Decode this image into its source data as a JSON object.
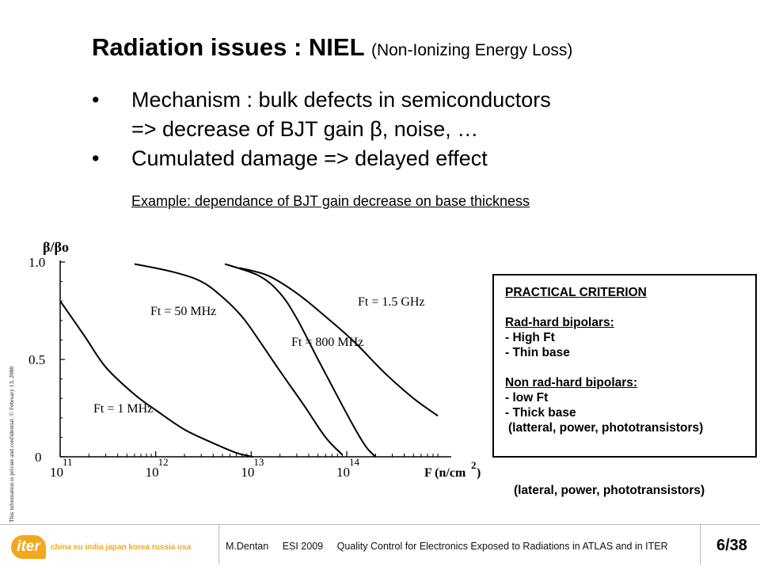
{
  "slide": {
    "title": "Radiation issues : NIEL",
    "title_sub": "(Non-Ionizing Energy Loss)",
    "bullets": [
      {
        "marker": "•",
        "line1": "Mechanism : bulk defects in semiconductors",
        "line2": "=> decrease of BJT gain β, noise, …"
      },
      {
        "marker": "•",
        "line1": "Cumulated damage => delayed effect"
      }
    ],
    "example": "Example: dependance of BJT gain decrease on base thickness",
    "side_note": "This information is private and confidential.  © February 13, 2008"
  },
  "criterion": {
    "title": "PRACTICAL CRITERION",
    "radhard_head": "Rad-hard bipolars:",
    "radhard_items": [
      "- High Ft",
      "- Thin base"
    ],
    "nonradhard_head": "Non rad-hard bipolars:",
    "nonradhard_items": [
      "- low Ft",
      "- Thick base"
    ],
    "nonradhard_note": "(latteral, power, phototransistors)",
    "below_note": "(lateral, power, phototransistors)"
  },
  "footer": {
    "logo_text": "iter",
    "logo_tagline": "china eu india japan korea russia usa",
    "author": "M.Dentan",
    "event": "ESI 2009",
    "talk": "Quality Control for Electronics Exposed to Radiations in ATLAS and in ITER",
    "page": "6/38"
  },
  "chart_data": {
    "type": "line",
    "ylabel": "β/βo",
    "xlabel": "F (n/cm",
    "xlabel_sup": "2",
    "xlabel_tail": " )",
    "x_scale": "log",
    "xlim": [
      100000000000.0,
      1000000000000000.0
    ],
    "ylim": [
      0,
      1.0
    ],
    "x_ticks": [
      {
        "base": "10",
        "exp": "11"
      },
      {
        "base": "10",
        "exp": "12"
      },
      {
        "base": "10",
        "exp": "13"
      },
      {
        "base": "10",
        "exp": "14"
      }
    ],
    "y_ticks": [
      "0",
      "0.5",
      "1.0"
    ],
    "series": [
      {
        "name": "Ft = 1 MHz",
        "points": [
          [
            100000000000.0,
            0.8
          ],
          [
            180000000000.0,
            0.62
          ],
          [
            300000000000.0,
            0.46
          ],
          [
            600000000000.0,
            0.32
          ],
          [
            1000000000000.0,
            0.24
          ],
          [
            2000000000000.0,
            0.14
          ],
          [
            4000000000000.0,
            0.07
          ],
          [
            7000000000000.0,
            0.02
          ],
          [
            10500000000000.0,
            0.0
          ]
        ]
      },
      {
        "name": "Ft = 50 MHz",
        "points": [
          [
            600000000000.0,
            0.99
          ],
          [
            1500000000000.0,
            0.95
          ],
          [
            3000000000000.0,
            0.9
          ],
          [
            5000000000000.0,
            0.82
          ],
          [
            8000000000000.0,
            0.72
          ],
          [
            12000000000000.0,
            0.6
          ],
          [
            20000000000000.0,
            0.44
          ],
          [
            35000000000000.0,
            0.27
          ],
          [
            60000000000000.0,
            0.1
          ],
          [
            90000000000000.0,
            0.01
          ]
        ]
      },
      {
        "name": "Ft = 800 MHz",
        "points": [
          [
            5300000000000.0,
            0.99
          ],
          [
            12000000000000.0,
            0.93
          ],
          [
            20000000000000.0,
            0.84
          ],
          [
            30000000000000.0,
            0.71
          ],
          [
            50000000000000.0,
            0.5
          ],
          [
            80000000000000.0,
            0.31
          ],
          [
            120000000000000.0,
            0.15
          ],
          [
            160000000000000.0,
            0.05
          ],
          [
            200000000000000.0,
            0.0
          ]
        ]
      },
      {
        "name": "Ft = 1.5 GHz",
        "points": [
          [
            7500000000000.0,
            0.97
          ],
          [
            15000000000000.0,
            0.93
          ],
          [
            30000000000000.0,
            0.84
          ],
          [
            60000000000000.0,
            0.72
          ],
          [
            120000000000000.0,
            0.59
          ],
          [
            250000000000000.0,
            0.43
          ],
          [
            500000000000000.0,
            0.3
          ],
          [
            900000000000000.0,
            0.21
          ]
        ]
      }
    ],
    "grid": false,
    "legend": "none (labels on curves)"
  }
}
